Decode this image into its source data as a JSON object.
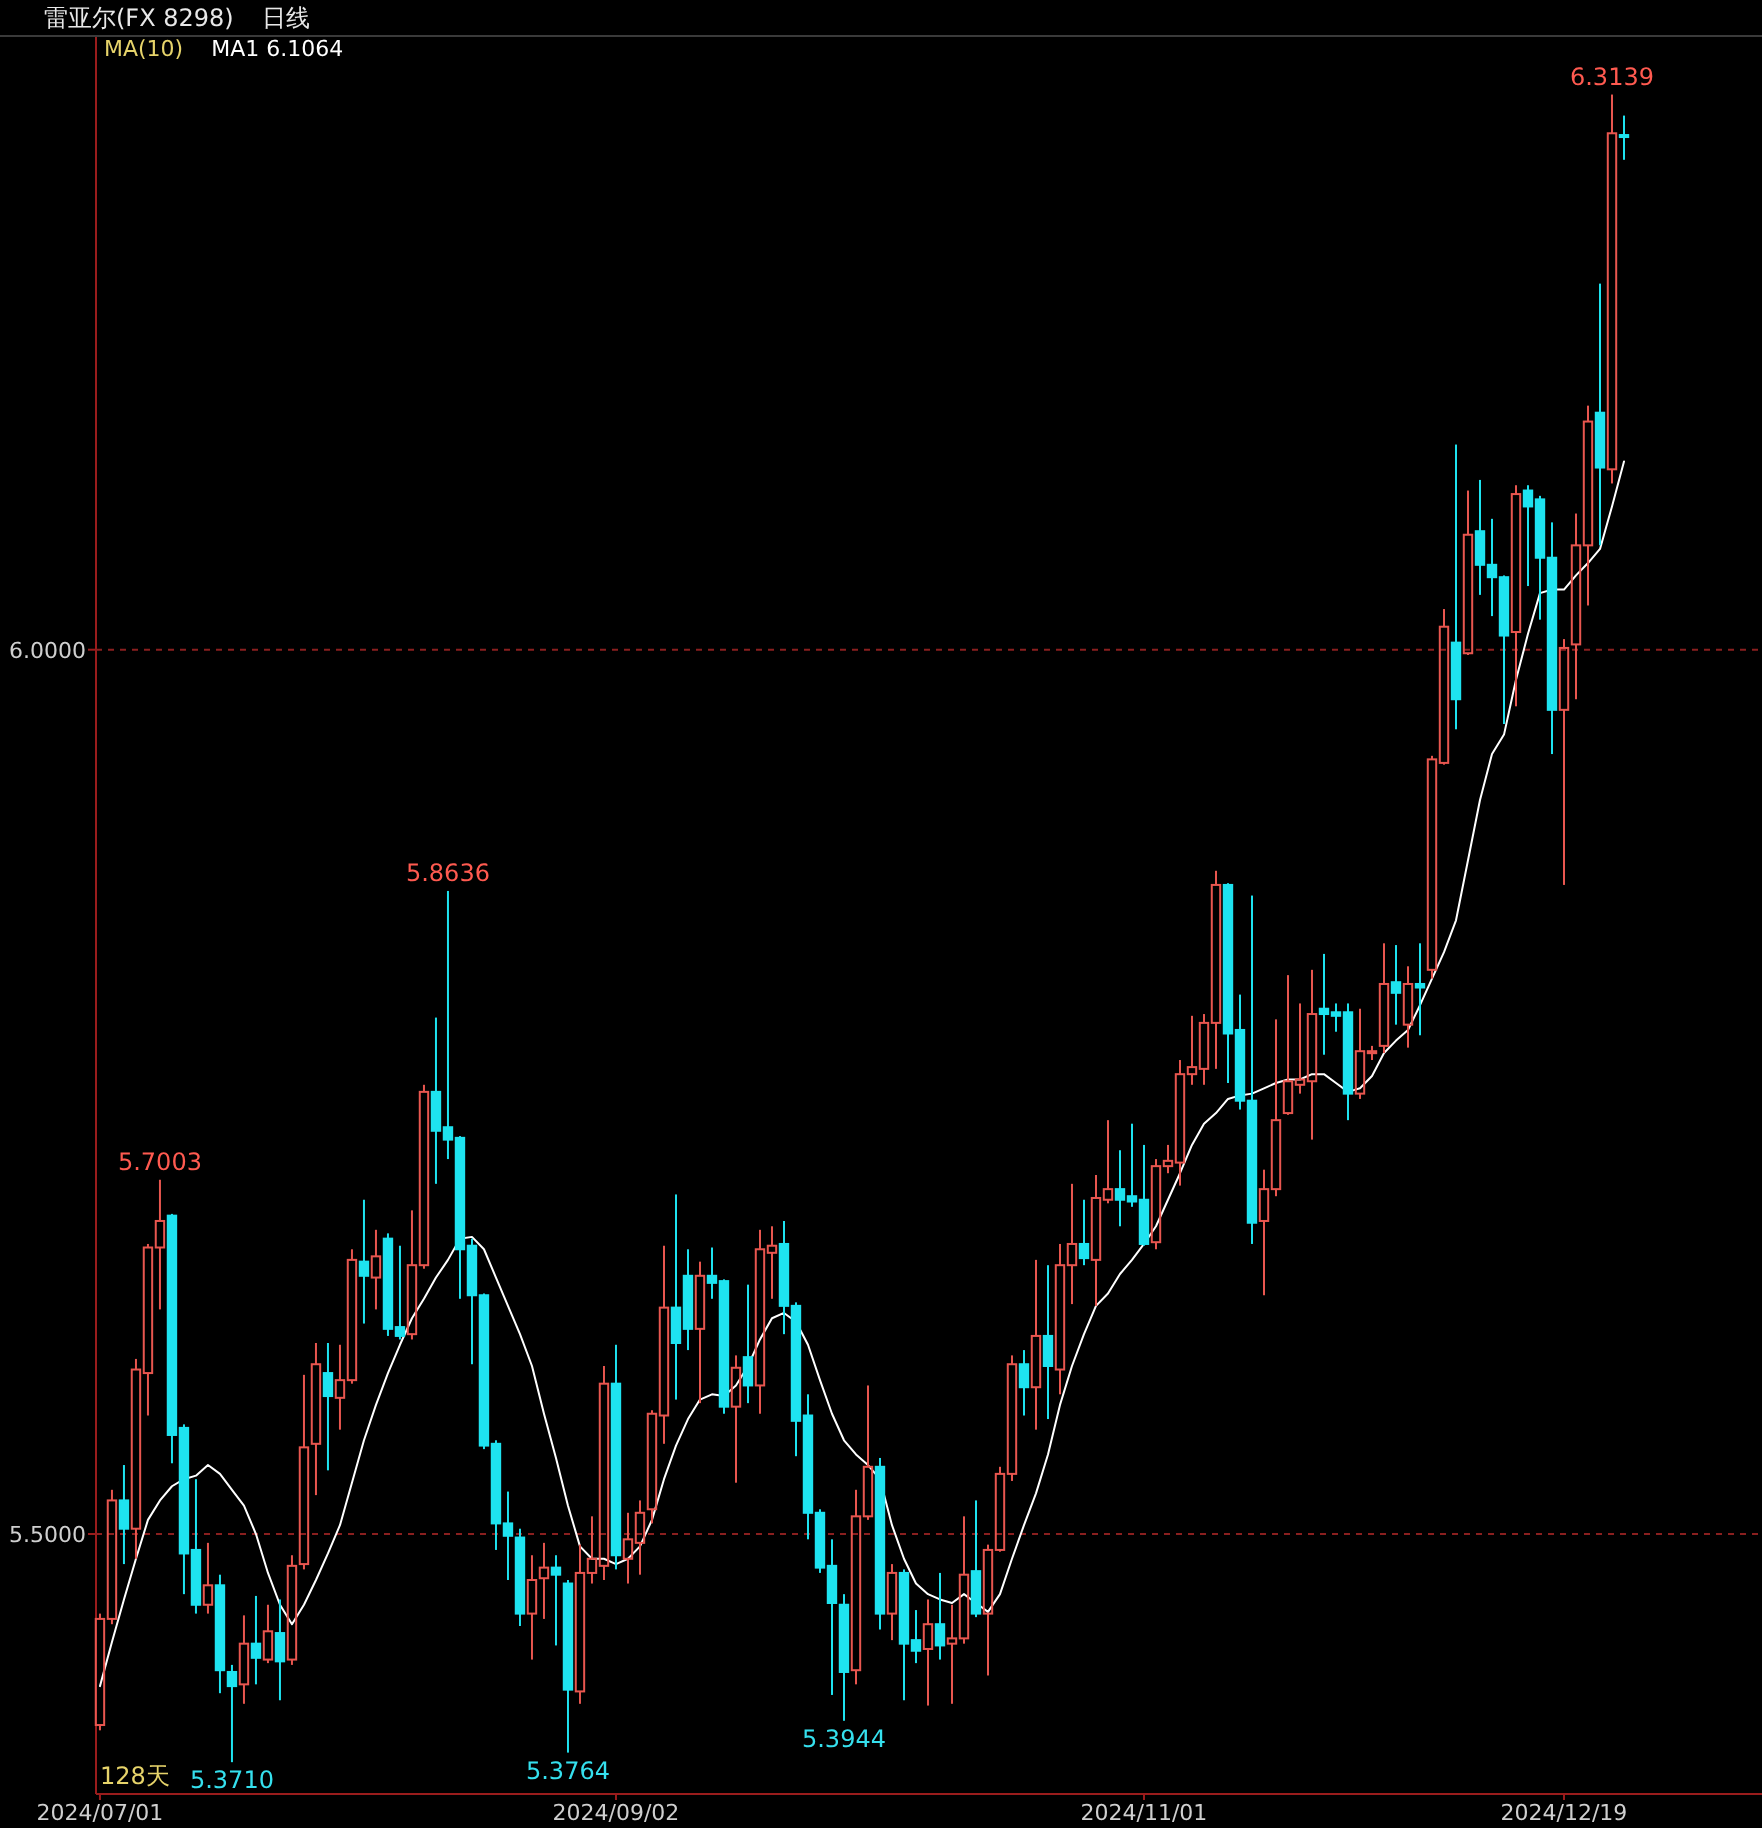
{
  "chart_data": {
    "type": "candlestick",
    "title": "雷亚尔(FX 8298)",
    "subtitle": "日线",
    "legend_title": "MA(10)",
    "legend": "top left",
    "grid": "y",
    "marker": "none",
    "ylim": [
      5.353,
      6.347
    ],
    "yticks": [
      {
        "value": 5.5,
        "label": "5.5000"
      },
      {
        "value": 6,
        "label": "6.0000"
      }
    ],
    "categories": [
      "2024/07/01",
      null,
      null,
      null,
      null,
      null,
      null,
      null,
      null,
      null,
      null,
      null,
      null,
      null,
      null,
      null,
      null,
      null,
      null,
      null,
      null,
      null,
      null,
      null,
      null,
      null,
      null,
      null,
      null,
      null,
      null,
      null,
      null,
      null,
      null,
      null,
      null,
      null,
      null,
      null,
      null,
      null,
      null,
      "2024/09/02",
      null,
      null,
      null,
      null,
      null,
      null,
      null,
      null,
      null,
      null,
      null,
      null,
      null,
      null,
      null,
      null,
      null,
      null,
      null,
      null,
      null,
      null,
      null,
      null,
      null,
      null,
      null,
      null,
      null,
      null,
      null,
      null,
      null,
      null,
      null,
      null,
      null,
      null,
      null,
      null,
      null,
      null,
      null,
      "2024/11/01",
      null,
      null,
      null,
      null,
      null,
      null,
      null,
      null,
      null,
      null,
      null,
      null,
      null,
      null,
      null,
      null,
      null,
      null,
      null,
      null,
      null,
      null,
      null,
      null,
      null,
      null,
      null,
      null,
      null,
      null,
      null,
      null,
      null,
      null,
      "2024/12/19",
      null,
      null,
      null,
      null,
      null
    ],
    "ohlc": [
      [
        5.392,
        5.455,
        5.389,
        5.452
      ],
      [
        5.452,
        5.525,
        5.449,
        5.519
      ],
      [
        5.519,
        5.539,
        5.483,
        5.503
      ],
      [
        5.503,
        5.599,
        5.486,
        5.593
      ],
      [
        5.591,
        5.664,
        5.567,
        5.662
      ],
      [
        5.662,
        5.7003,
        5.627,
        5.677
      ],
      [
        5.68,
        5.681,
        5.54,
        5.556
      ],
      [
        5.56,
        5.562,
        5.466,
        5.489
      ],
      [
        5.491,
        5.531,
        5.455,
        5.46
      ],
      [
        5.46,
        5.495,
        5.455,
        5.471
      ],
      [
        5.471,
        5.477,
        5.41,
        5.423
      ],
      [
        5.422,
        5.426,
        5.371,
        5.414
      ],
      [
        5.415,
        5.454,
        5.404,
        5.438
      ],
      [
        5.438,
        5.465,
        5.415,
        5.43
      ],
      [
        5.429,
        5.46,
        5.427,
        5.445
      ],
      [
        5.444,
        5.463,
        5.406,
        5.428
      ],
      [
        5.429,
        5.488,
        5.426,
        5.482
      ],
      [
        5.483,
        5.59,
        5.48,
        5.549
      ],
      [
        5.551,
        5.608,
        5.522,
        5.596
      ],
      [
        5.591,
        5.608,
        5.536,
        5.578
      ],
      [
        5.577,
        5.607,
        5.559,
        5.587
      ],
      [
        5.587,
        5.661,
        5.585,
        5.655
      ],
      [
        5.654,
        5.689,
        5.619,
        5.646
      ],
      [
        5.645,
        5.672,
        5.627,
        5.657
      ],
      [
        5.667,
        5.67,
        5.612,
        5.616
      ],
      [
        5.617,
        5.663,
        5.61,
        5.612
      ],
      [
        5.613,
        5.683,
        5.61,
        5.652
      ],
      [
        5.652,
        5.754,
        5.65,
        5.75
      ],
      [
        5.75,
        5.792,
        5.698,
        5.728
      ],
      [
        5.73,
        5.8636,
        5.712,
        5.723
      ],
      [
        5.724,
        5.725,
        5.633,
        5.661
      ],
      [
        5.663,
        5.667,
        5.596,
        5.635
      ],
      [
        5.635,
        5.636,
        5.548,
        5.55
      ],
      [
        5.551,
        5.553,
        5.491,
        5.506
      ],
      [
        5.506,
        5.524,
        5.474,
        5.499
      ],
      [
        5.498,
        5.503,
        5.448,
        5.455
      ],
      [
        5.455,
        5.488,
        5.429,
        5.474
      ],
      [
        5.475,
        5.495,
        5.452,
        5.481
      ],
      [
        5.481,
        5.488,
        5.437,
        5.477
      ],
      [
        5.472,
        5.474,
        5.3764,
        5.412
      ],
      [
        5.411,
        5.494,
        5.404,
        5.478
      ],
      [
        5.478,
        5.51,
        5.472,
        5.486
      ],
      [
        5.482,
        5.595,
        5.474,
        5.585
      ],
      [
        5.585,
        5.607,
        5.48,
        5.488
      ],
      [
        5.486,
        5.512,
        5.472,
        5.497
      ],
      [
        5.495,
        5.519,
        5.477,
        5.512
      ],
      [
        5.514,
        5.57,
        5.506,
        5.568
      ],
      [
        5.567,
        5.663,
        5.551,
        5.628
      ],
      [
        5.628,
        5.692,
        5.576,
        5.608
      ],
      [
        5.646,
        5.661,
        5.604,
        5.616
      ],
      [
        5.616,
        5.654,
        5.574,
        5.646
      ],
      [
        5.646,
        5.662,
        5.633,
        5.642
      ],
      [
        5.643,
        5.644,
        5.568,
        5.572
      ],
      [
        5.572,
        5.601,
        5.529,
        5.594
      ],
      [
        5.6,
        5.641,
        5.574,
        5.584
      ],
      [
        5.584,
        5.672,
        5.568,
        5.661
      ],
      [
        5.659,
        5.674,
        5.633,
        5.663
      ],
      [
        5.664,
        5.677,
        5.613,
        5.629
      ],
      [
        5.629,
        5.631,
        5.544,
        5.564
      ],
      [
        5.567,
        5.579,
        5.497,
        5.512
      ],
      [
        5.512,
        5.514,
        5.478,
        5.481
      ],
      [
        5.482,
        5.497,
        5.409,
        5.461
      ],
      [
        5.46,
        5.466,
        5.3944,
        5.422
      ],
      [
        5.423,
        5.525,
        5.415,
        5.51
      ],
      [
        5.51,
        5.584,
        5.508,
        5.538
      ],
      [
        5.538,
        5.543,
        5.446,
        5.455
      ],
      [
        5.455,
        5.483,
        5.44,
        5.478
      ],
      [
        5.478,
        5.48,
        5.406,
        5.438
      ],
      [
        5.44,
        5.457,
        5.427,
        5.434
      ],
      [
        5.435,
        5.463,
        5.403,
        5.449
      ],
      [
        5.449,
        5.478,
        5.429,
        5.437
      ],
      [
        5.438,
        5.46,
        5.404,
        5.441
      ],
      [
        5.441,
        5.51,
        5.438,
        5.477
      ],
      [
        5.479,
        5.519,
        5.453,
        5.455
      ],
      [
        5.455,
        5.494,
        5.42,
        5.491
      ],
      [
        5.491,
        5.538,
        5.49,
        5.534
      ],
      [
        5.534,
        5.601,
        5.53,
        5.596
      ],
      [
        5.596,
        5.604,
        5.567,
        5.583
      ],
      [
        5.583,
        5.655,
        5.559,
        5.612
      ],
      [
        5.612,
        5.652,
        5.565,
        5.595
      ],
      [
        5.593,
        5.664,
        5.579,
        5.652
      ],
      [
        5.652,
        5.698,
        5.63,
        5.664
      ],
      [
        5.664,
        5.689,
        5.652,
        5.656
      ],
      [
        5.655,
        5.703,
        5.629,
        5.69
      ],
      [
        5.689,
        5.734,
        5.687,
        5.695
      ],
      [
        5.695,
        5.717,
        5.674,
        5.689
      ],
      [
        5.691,
        5.732,
        5.685,
        5.688
      ],
      [
        5.689,
        5.72,
        5.663,
        5.664
      ],
      [
        5.665,
        5.712,
        5.661,
        5.708
      ],
      [
        5.708,
        5.72,
        5.704,
        5.711
      ],
      [
        5.71,
        5.768,
        5.697,
        5.76
      ],
      [
        5.76,
        5.793,
        5.754,
        5.764
      ],
      [
        5.763,
        5.794,
        5.754,
        5.789
      ],
      [
        5.789,
        5.875,
        5.763,
        5.867
      ],
      [
        5.867,
        5.868,
        5.755,
        5.783
      ],
      [
        5.785,
        5.805,
        5.74,
        5.745
      ],
      [
        5.745,
        5.861,
        5.664,
        5.676
      ],
      [
        5.677,
        5.706,
        5.635,
        5.695
      ],
      [
        5.695,
        5.791,
        5.691,
        5.734
      ],
      [
        5.738,
        5.816,
        5.737,
        5.756
      ],
      [
        5.754,
        5.8,
        5.749,
        5.757
      ],
      [
        5.756,
        5.819,
        5.723,
        5.794
      ],
      [
        5.797,
        5.828,
        5.771,
        5.794
      ],
      [
        5.795,
        5.8,
        5.784,
        5.793
      ],
      [
        5.795,
        5.8,
        5.734,
        5.749
      ],
      [
        5.749,
        5.797,
        5.746,
        5.773
      ],
      [
        5.772,
        5.776,
        5.768,
        5.773
      ],
      [
        5.776,
        5.834,
        5.772,
        5.811
      ],
      [
        5.812,
        5.833,
        5.788,
        5.806
      ],
      [
        5.788,
        5.821,
        5.775,
        5.811
      ],
      [
        5.811,
        5.834,
        5.782,
        5.809
      ],
      [
        5.819,
        5.94,
        5.814,
        5.938
      ],
      [
        5.936,
        6.023,
        5.935,
        6.013
      ],
      [
        6.004,
        6.116,
        5.955,
        5.972
      ],
      [
        5.998,
        6.09,
        5.997,
        6.065
      ],
      [
        6.067,
        6.096,
        6.031,
        6.048
      ],
      [
        6.048,
        6.074,
        6.019,
        6.041
      ],
      [
        6.041,
        6.042,
        5.958,
        6.008
      ],
      [
        6.01,
        6.093,
        5.968,
        6.088
      ],
      [
        6.09,
        6.093,
        6.036,
        6.081
      ],
      [
        6.085,
        6.087,
        6.017,
        6.052
      ],
      [
        6.052,
        6.072,
        5.941,
        5.966
      ],
      [
        5.966,
        6.006,
        5.867,
        6.001
      ],
      [
        6.003,
        6.077,
        5.972,
        6.059
      ],
      [
        6.059,
        6.138,
        6.025,
        6.129
      ],
      [
        6.134,
        6.207,
        6.059,
        6.103
      ],
      [
        6.102,
        6.3139,
        6.094,
        6.292
      ],
      [
        6.291,
        6.302,
        6.277,
        6.29
      ]
    ],
    "colors": [
      "#e8564f",
      "#e8564f",
      "#1ee3f0",
      "#e8564f",
      "#e8564f",
      "#e8564f",
      "#1ee3f0",
      "#1ee3f0",
      "#1ee3f0",
      "#e8564f",
      "#1ee3f0",
      "#1ee3f0",
      "#e8564f",
      "#1ee3f0",
      "#e8564f",
      "#1ee3f0",
      "#e8564f",
      "#e8564f",
      "#e8564f",
      "#1ee3f0",
      "#e8564f",
      "#e8564f",
      "#1ee3f0",
      "#e8564f",
      "#1ee3f0",
      "#1ee3f0",
      "#e8564f",
      "#e8564f",
      "#1ee3f0",
      "#1ee3f0",
      "#1ee3f0",
      "#1ee3f0",
      "#1ee3f0",
      "#1ee3f0",
      "#1ee3f0",
      "#1ee3f0",
      "#e8564f",
      "#e8564f",
      "#1ee3f0",
      "#1ee3f0",
      "#e8564f",
      "#e8564f",
      "#e8564f",
      "#1ee3f0",
      "#e8564f",
      "#e8564f",
      "#e8564f",
      "#e8564f",
      "#1ee3f0",
      "#1ee3f0",
      "#e8564f",
      "#1ee3f0",
      "#1ee3f0",
      "#e8564f",
      "#1ee3f0",
      "#e8564f",
      "#e8564f",
      "#1ee3f0",
      "#1ee3f0",
      "#1ee3f0",
      "#1ee3f0",
      "#1ee3f0",
      "#1ee3f0",
      "#e8564f",
      "#e8564f",
      "#1ee3f0",
      "#e8564f",
      "#1ee3f0",
      "#1ee3f0",
      "#e8564f",
      "#1ee3f0",
      "#e8564f",
      "#e8564f",
      "#1ee3f0",
      "#e8564f",
      "#e8564f",
      "#e8564f",
      "#1ee3f0",
      "#e8564f",
      "#1ee3f0",
      "#e8564f",
      "#e8564f",
      "#1ee3f0",
      "#e8564f",
      "#e8564f",
      "#1ee3f0",
      "#1ee3f0",
      "#1ee3f0",
      "#e8564f",
      "#e8564f",
      "#e8564f",
      "#e8564f",
      "#e8564f",
      "#e8564f",
      "#1ee3f0",
      "#1ee3f0",
      "#1ee3f0",
      "#e8564f",
      "#e8564f",
      "#e8564f",
      "#e8564f",
      "#e8564f",
      "#1ee3f0",
      "#1ee3f0",
      "#1ee3f0",
      "#e8564f",
      "#e8564f",
      "#e8564f",
      "#1ee3f0",
      "#e8564f",
      "#1ee3f0",
      "#e8564f",
      "#e8564f",
      "#1ee3f0",
      "#e8564f",
      "#1ee3f0",
      "#1ee3f0",
      "#1ee3f0",
      "#e8564f",
      "#1ee3f0",
      "#1ee3f0",
      "#1ee3f0",
      "#e8564f",
      "#e8564f",
      "#e8564f",
      "#1ee3f0",
      "#e8564f",
      "#1ee3f0"
    ],
    "series": [
      {
        "type": "line",
        "name": "MA1 6.1064",
        "color": "#ffffff",
        "values": [
          5.414,
          5.439,
          5.463,
          5.486,
          5.508,
          5.519,
          5.527,
          5.531,
          5.533,
          5.539,
          5.534,
          5.525,
          5.516,
          5.5,
          5.478,
          5.46,
          5.449,
          5.46,
          5.474,
          5.489,
          5.505,
          5.529,
          5.553,
          5.573,
          5.591,
          5.607,
          5.622,
          5.633,
          5.645,
          5.655,
          5.667,
          5.668,
          5.661,
          5.645,
          5.629,
          5.613,
          5.595,
          5.568,
          5.543,
          5.516,
          5.493,
          5.486,
          5.486,
          5.483,
          5.486,
          5.493,
          5.508,
          5.531,
          5.55,
          5.565,
          5.576,
          5.579,
          5.578,
          5.584,
          5.595,
          5.61,
          5.622,
          5.625,
          5.62,
          5.607,
          5.587,
          5.568,
          5.553,
          5.545,
          5.539,
          5.531,
          5.505,
          5.486,
          5.472,
          5.466,
          5.463,
          5.461,
          5.466,
          5.461,
          5.456,
          5.466,
          5.486,
          5.505,
          5.523,
          5.545,
          5.573,
          5.595,
          5.613,
          5.629,
          5.636,
          5.647,
          5.655,
          5.664,
          5.674,
          5.689,
          5.704,
          5.72,
          5.732,
          5.738,
          5.746,
          5.748,
          5.749,
          5.752,
          5.755,
          5.757,
          5.757,
          5.76,
          5.76,
          5.755,
          5.75,
          5.752,
          5.759,
          5.772,
          5.779,
          5.785,
          5.799,
          5.814,
          5.829,
          5.847,
          5.881,
          5.915,
          5.941,
          5.952,
          5.983,
          6.009,
          6.032,
          6.034,
          6.034,
          6.042,
          6.049,
          6.057,
          6.081,
          6.1064
        ]
      }
    ],
    "annotations": [
      {
        "text": "5.7003",
        "y": 5.7003
      },
      {
        "text": "5.8636",
        "y": 5.8636
      },
      {
        "text": "6.3139",
        "y": 6.3139
      },
      {
        "text": "5.3710",
        "y": 5.371
      },
      {
        "text": "5.3764",
        "y": 5.3764
      },
      {
        "text": "5.3944",
        "y": 5.3944
      },
      "128天"
    ]
  }
}
